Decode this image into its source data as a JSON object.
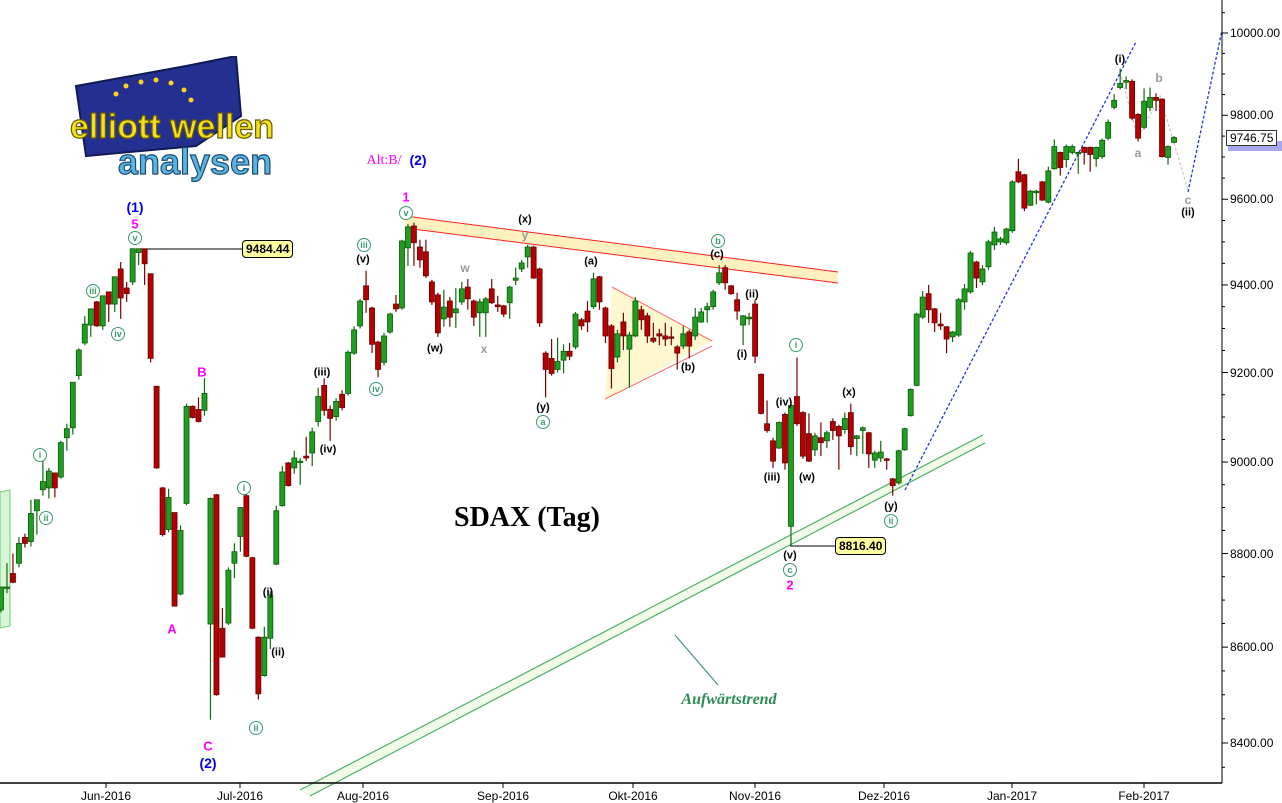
{
  "logo": {
    "line1": "elliott wellen",
    "line2": "analysen"
  },
  "title": "SDAX (Tag)",
  "trend_label": "Aufwärtstrend",
  "alt_label": "Alt:B/",
  "alt_label_2": "(2)",
  "price_labels": {
    "high_1": "9484.44",
    "low_2": "8816.40",
    "last": "9746.75"
  },
  "annotations": [
    "(1)",
    "5",
    "v",
    "iii",
    "iv",
    "i",
    "ii",
    "B",
    "A",
    "C",
    "(2)",
    "i",
    "ii",
    "(i)",
    "(ii)",
    "(iii)",
    "(iv)",
    "iii",
    "(v)",
    "iv",
    "1",
    "v",
    "(w)",
    "w",
    "x",
    "(x)",
    "y",
    "(y)",
    "a",
    "(a)",
    "(b)",
    "b",
    "(c)",
    "(ii)",
    "(i)",
    "i",
    "(iv)",
    "(iii)",
    "(w)",
    "(x)",
    "(y)",
    "ii",
    "(v)",
    "c",
    "2",
    "(i)",
    "b",
    "a",
    "c",
    "(ii)"
  ],
  "colors": {
    "up": "#1f9e1f",
    "down": "#b40000",
    "wave_green": "#3a9a6a",
    "wave_magenta": "#ff00ff",
    "wave_blue": "#0000ee",
    "channel_red": "#ff2020",
    "trend_green": "#4caf6a",
    "projection_blue": "#2233dd"
  },
  "chart_data": {
    "type": "candlestick",
    "title": "SDAX (Tag)",
    "yscale": "log",
    "ylim": [
      8300,
      10060
    ],
    "grid": false,
    "y_ticks": [
      "10000.00",
      "9800.00",
      "9600.00",
      "9400.00",
      "9200.00",
      "9000.00",
      "8800.00",
      "8600.00",
      "8400.00"
    ],
    "x_ticks": [
      "Jun-2016",
      "Jul-2016",
      "Aug-2016",
      "Sep-2016",
      "Okt-2016",
      "Nov-2016",
      "Dez-2016",
      "Jan-2017",
      "Feb-2017"
    ],
    "ohlc_columns": [
      "open",
      "high",
      "low",
      "close"
    ],
    "ohlc": [
      [
        8679,
        8728,
        8674,
        8728
      ],
      [
        8728,
        8779,
        8715,
        8728
      ],
      [
        8757,
        8800,
        8736,
        8738
      ],
      [
        8779,
        8835,
        8770,
        8822
      ],
      [
        8835,
        8843,
        8813,
        8822
      ],
      [
        8826,
        8917,
        8815,
        8887
      ],
      [
        8893,
        8917,
        8841,
        8917
      ],
      [
        8939,
        9004,
        8926,
        8957
      ],
      [
        8943,
        8987,
        8920,
        8980
      ],
      [
        8976,
        8976,
        8922,
        8943
      ],
      [
        8967,
        9047,
        8963,
        9043
      ],
      [
        9054,
        9085,
        9025,
        9074
      ],
      [
        9076,
        9178,
        9061,
        9178
      ],
      [
        9193,
        9255,
        9184,
        9251
      ],
      [
        9267,
        9329,
        9262,
        9310
      ],
      [
        9308,
        9345,
        9281,
        9345
      ],
      [
        9361,
        9363,
        9304,
        9306
      ],
      [
        9306,
        9375,
        9297,
        9375
      ],
      [
        9384,
        9384,
        9315,
        9356
      ],
      [
        9356,
        9419,
        9338,
        9419
      ],
      [
        9437,
        9453,
        9322,
        9370
      ],
      [
        9393,
        9407,
        9361,
        9380
      ],
      [
        9407,
        9484,
        9400,
        9484
      ],
      [
        9475,
        9484,
        9446,
        9484
      ],
      [
        9484,
        9484.44,
        9400,
        9449
      ],
      [
        9426,
        9426,
        9223,
        9232
      ],
      [
        9169,
        9169,
        8985,
        8987
      ],
      [
        8943,
        8945,
        8837,
        8841
      ],
      [
        8852,
        8941,
        8846,
        8922
      ],
      [
        8889,
        8889,
        8687,
        8687
      ],
      [
        8713,
        8861,
        8710,
        8850
      ],
      [
        8909,
        9130,
        8905,
        9124
      ],
      [
        9124,
        9126,
        9097,
        9099
      ],
      [
        9117,
        9144,
        9088,
        9090
      ],
      [
        9115,
        9187,
        9103,
        9153
      ],
      [
        8649,
        8922,
        8448,
        8920
      ],
      [
        8928,
        8930,
        8498,
        8500
      ],
      [
        8640,
        8683,
        8579,
        8579
      ],
      [
        8651,
        8770,
        8647,
        8764
      ],
      [
        8779,
        8822,
        8747,
        8804
      ],
      [
        8837,
        8900,
        8804,
        8900
      ],
      [
        8926,
        8933,
        8792,
        8794
      ],
      [
        8791,
        8793,
        8638,
        8640
      ],
      [
        8621,
        8623,
        8490,
        8502
      ],
      [
        8540,
        8643,
        8538,
        8621
      ],
      [
        8619,
        8719,
        8596,
        8711
      ],
      [
        8777,
        8904,
        8775,
        8893
      ],
      [
        8904,
        8991,
        8902,
        8978
      ],
      [
        8998,
        9000,
        8946,
        8948
      ],
      [
        8987,
        9025,
        8974,
        9009
      ],
      [
        9000,
        9009,
        8950,
        9002
      ],
      [
        9013,
        9056,
        9002,
        9009
      ],
      [
        9020,
        9076,
        8991,
        9067
      ],
      [
        9090,
        9166,
        9079,
        9146
      ],
      [
        9171,
        9187,
        9103,
        9115
      ],
      [
        9117,
        9126,
        9047,
        9097
      ],
      [
        9101,
        9142,
        9092,
        9135
      ],
      [
        9151,
        9160,
        9115,
        9121
      ],
      [
        9153,
        9250,
        9148,
        9246
      ],
      [
        9244,
        9305,
        9240,
        9297
      ],
      [
        9306,
        9368,
        9300,
        9363
      ],
      [
        9398,
        9433,
        9336,
        9366
      ],
      [
        9347,
        9350,
        9244,
        9264
      ],
      [
        9269,
        9272,
        9189,
        9207
      ],
      [
        9223,
        9290,
        9216,
        9283
      ],
      [
        9292,
        9336,
        9288,
        9333
      ],
      [
        9356,
        9377,
        9338,
        9345
      ],
      [
        9347,
        9505,
        9343,
        9502
      ],
      [
        9486,
        9542,
        9444,
        9535
      ],
      [
        9537,
        9545,
        9444,
        9498
      ],
      [
        9488,
        9505,
        9440,
        9458
      ],
      [
        9477,
        9505,
        9416,
        9421
      ],
      [
        9407,
        9412,
        9354,
        9361
      ],
      [
        9377,
        9382,
        9281,
        9290
      ],
      [
        9322,
        9389,
        9304,
        9349
      ],
      [
        9363,
        9372,
        9304,
        9326
      ],
      [
        9336,
        9393,
        9301,
        9345
      ],
      [
        9361,
        9407,
        9354,
        9391
      ],
      [
        9395,
        9414,
        9343,
        9368
      ],
      [
        9363,
        9366,
        9306,
        9326
      ],
      [
        9336,
        9368,
        9281,
        9361
      ],
      [
        9336,
        9372,
        9281,
        9368
      ],
      [
        9391,
        9414,
        9356,
        9359
      ],
      [
        9354,
        9375,
        9338,
        9350
      ],
      [
        9352,
        9354,
        9326,
        9333
      ],
      [
        9359,
        9398,
        9322,
        9395
      ],
      [
        9411,
        9440,
        9400,
        9416
      ],
      [
        9437,
        9458,
        9430,
        9451
      ],
      [
        9465,
        9493,
        9440,
        9488
      ],
      [
        9488,
        9491,
        9414,
        9416
      ],
      [
        9437,
        9440,
        9304,
        9313
      ],
      [
        9244,
        9248,
        9144,
        9207
      ],
      [
        9232,
        9276,
        9193,
        9198
      ],
      [
        9207,
        9279,
        9200,
        9225
      ],
      [
        9228,
        9264,
        9198,
        9248
      ],
      [
        9248,
        9267,
        9228,
        9237
      ],
      [
        9258,
        9338,
        9253,
        9333
      ],
      [
        9320,
        9324,
        9297,
        9306
      ],
      [
        9340,
        9363,
        9292,
        9315
      ],
      [
        9350,
        9428,
        9345,
        9414
      ],
      [
        9419,
        9421,
        9343,
        9361
      ],
      [
        9347,
        9350,
        9267,
        9283
      ],
      [
        9306,
        9310,
        9164,
        9209
      ],
      [
        9235,
        9297,
        9223,
        9288
      ],
      [
        9315,
        9336,
        9251,
        9283
      ],
      [
        9253,
        9292,
        9166,
        9285
      ],
      [
        9283,
        9372,
        9280,
        9363
      ],
      [
        9343,
        9352,
        9297,
        9320
      ],
      [
        9329,
        9336,
        9267,
        9283
      ],
      [
        9278,
        9313,
        9267,
        9271
      ],
      [
        9288,
        9299,
        9262,
        9283
      ],
      [
        9283,
        9313,
        9260,
        9276
      ],
      [
        9281,
        9304,
        9262,
        9278
      ],
      [
        9258,
        9262,
        9207,
        9244
      ],
      [
        9260,
        9306,
        9253,
        9288
      ],
      [
        9292,
        9297,
        9232,
        9260
      ],
      [
        9283,
        9347,
        9274,
        9326
      ],
      [
        9315,
        9347,
        9313,
        9338
      ],
      [
        9343,
        9359,
        9313,
        9350
      ],
      [
        9350,
        9389,
        9343,
        9384
      ],
      [
        9405,
        9446,
        9400,
        9428
      ],
      [
        9440,
        9446,
        9389,
        9405
      ],
      [
        9398,
        9400,
        9377,
        9380
      ],
      [
        9366,
        9382,
        9320,
        9340
      ],
      [
        9308,
        9331,
        9262,
        9329
      ],
      [
        9322,
        9336,
        9308,
        9326
      ],
      [
        9356,
        9366,
        9221,
        9237
      ],
      [
        9196,
        9198,
        9106,
        9108
      ],
      [
        9085,
        9137,
        9065,
        9070
      ],
      [
        9047,
        9054,
        8987,
        9002
      ],
      [
        9031,
        9090,
        9029,
        9088
      ],
      [
        9106,
        9110,
        8983,
        8998
      ],
      [
        8859,
        9130,
        8816.4,
        9126
      ],
      [
        9146,
        9234,
        9080,
        9085
      ],
      [
        9110,
        9113,
        9007,
        9013
      ],
      [
        9063,
        9108,
        9000,
        9002
      ],
      [
        9027,
        9065,
        9013,
        9058
      ],
      [
        9054,
        9088,
        9013,
        9043
      ],
      [
        9047,
        9070,
        9031,
        9065
      ],
      [
        9090,
        9097,
        9049,
        9070
      ],
      [
        9079,
        9083,
        8983,
        9058
      ],
      [
        9072,
        9110,
        9063,
        9097
      ],
      [
        9110,
        9130,
        9016,
        9034
      ],
      [
        9052,
        9060,
        9013,
        9058
      ],
      [
        9070,
        9079,
        9018,
        9076
      ],
      [
        9065,
        9067,
        8987,
        9018
      ],
      [
        9004,
        9025,
        8987,
        9020
      ],
      [
        9009,
        9047,
        9000,
        9022
      ],
      [
        9007,
        9009,
        8983,
        9004
      ],
      [
        8963,
        8965,
        8926,
        8948
      ],
      [
        8954,
        9027,
        8950,
        9025
      ],
      [
        9027,
        9076,
        9025,
        9074
      ],
      [
        9103,
        9164,
        9101,
        9162
      ],
      [
        9171,
        9336,
        9169,
        9333
      ],
      [
        9326,
        9386,
        9322,
        9372
      ],
      [
        9380,
        9400,
        9313,
        9343
      ],
      [
        9345,
        9347,
        9292,
        9313
      ],
      [
        9310,
        9336,
        9297,
        9306
      ],
      [
        9304,
        9306,
        9244,
        9276
      ],
      [
        9281,
        9294,
        9269,
        9292
      ],
      [
        9285,
        9370,
        9281,
        9366
      ],
      [
        9361,
        9402,
        9343,
        9391
      ],
      [
        9384,
        9479,
        9380,
        9474
      ],
      [
        9453,
        9456,
        9393,
        9416
      ],
      [
        9407,
        9446,
        9400,
        9437
      ],
      [
        9442,
        9505,
        9435,
        9500
      ],
      [
        9493,
        9535,
        9481,
        9523
      ],
      [
        9500,
        9512,
        9493,
        9507
      ],
      [
        9498,
        9533,
        9493,
        9530
      ],
      [
        9526,
        9645,
        9521,
        9641
      ],
      [
        9665,
        9696,
        9638,
        9641
      ],
      [
        9658,
        9660,
        9572,
        9579
      ],
      [
        9586,
        9622,
        9584,
        9619
      ],
      [
        9617,
        9622,
        9588,
        9619
      ],
      [
        9641,
        9643,
        9596,
        9598
      ],
      [
        9593,
        9677,
        9590,
        9667
      ],
      [
        9672,
        9742,
        9670,
        9725
      ],
      [
        9711,
        9713,
        9656,
        9675
      ],
      [
        9694,
        9730,
        9675,
        9725
      ],
      [
        9711,
        9730,
        9706,
        9725
      ],
      [
        9708,
        9713,
        9660,
        9711
      ],
      [
        9723,
        9725,
        9682,
        9711
      ],
      [
        9723,
        9725,
        9665,
        9706
      ],
      [
        9696,
        9725,
        9677,
        9723
      ],
      [
        9701,
        9744,
        9696,
        9740
      ],
      [
        9745,
        9790,
        9740,
        9783
      ],
      [
        9819,
        9851,
        9814,
        9836
      ],
      [
        9867,
        9913,
        9862,
        9877
      ],
      [
        9880,
        9894,
        9863,
        9884
      ],
      [
        9882,
        9887,
        9788,
        9793
      ],
      [
        9802,
        9805,
        9737,
        9745
      ],
      [
        9771,
        9865,
        9766,
        9834
      ],
      [
        9819,
        9867,
        9810,
        9843
      ],
      [
        9843,
        9853,
        9810,
        9836
      ],
      [
        9839,
        9841,
        9699,
        9701
      ],
      [
        9699,
        9728,
        9682,
        9725
      ],
      [
        9735,
        9750,
        9733,
        9746.75
      ]
    ]
  }
}
